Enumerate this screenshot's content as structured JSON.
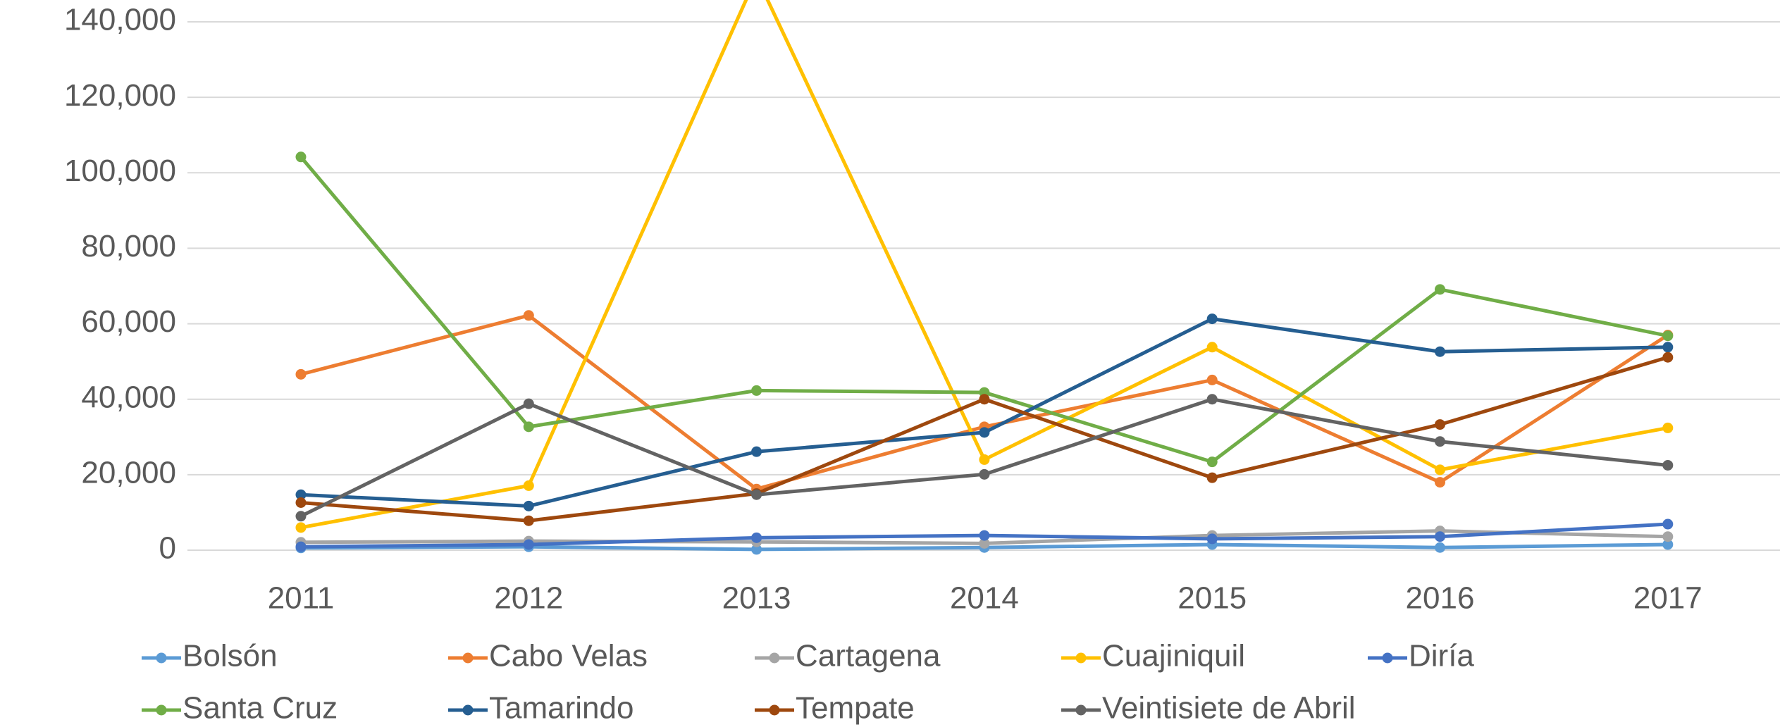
{
  "chart_data": {
    "type": "line",
    "categories": [
      "2011",
      "2012",
      "2013",
      "2014",
      "2015",
      "2016",
      "2017"
    ],
    "series": [
      {
        "name": "Bolsón",
        "color": "#5b9bd5",
        "values": [
          600,
          900,
          200,
          700,
          1500,
          700,
          1500
        ]
      },
      {
        "name": "Cabo Velas",
        "color": "#ed7d31",
        "values": [
          46600,
          62200,
          16200,
          32700,
          45100,
          18000,
          57000
        ]
      },
      {
        "name": "Cartagena",
        "color": "#a5a5a5",
        "values": [
          2100,
          2400,
          2200,
          1800,
          3900,
          5100,
          3600
        ]
      },
      {
        "name": "Cuajiniquil",
        "color": "#ffc000",
        "values": [
          6000,
          17100,
          152000,
          24000,
          53800,
          21300,
          32400
        ]
      },
      {
        "name": "Diría",
        "color": "#4472c4",
        "values": [
          900,
          1500,
          3300,
          3900,
          3000,
          3600,
          6900
        ]
      },
      {
        "name": "Santa Cruz",
        "color": "#70ad47",
        "values": [
          104200,
          32700,
          42300,
          41800,
          23400,
          69100,
          56800
        ]
      },
      {
        "name": "Tamarindo",
        "color": "#255e91",
        "values": [
          14700,
          11700,
          26100,
          31200,
          61300,
          52600,
          53800
        ]
      },
      {
        "name": "Tempate",
        "color": "#9e480e",
        "values": [
          12600,
          7800,
          15000,
          40000,
          19200,
          33300,
          51100
        ]
      },
      {
        "name": "Veintisiete de Abril",
        "color": "#636363",
        "values": [
          9000,
          38800,
          14700,
          20100,
          40000,
          28800,
          22500
        ]
      }
    ],
    "ylim": [
      0,
      140000
    ],
    "yticks": [
      0,
      {
        "value": 20000,
        "label": "20,000"
      },
      {
        "value": 40000,
        "label": "40,000"
      },
      {
        "value": 60000,
        "label": "60,000"
      },
      {
        "value": 80000,
        "label": "80,000"
      },
      {
        "value": 100000,
        "label": "100,000"
      },
      {
        "value": 120000,
        "label": "120,000"
      },
      {
        "value": 140000,
        "label": "140,000"
      }
    ],
    "grid": true,
    "legend": "bottom"
  }
}
